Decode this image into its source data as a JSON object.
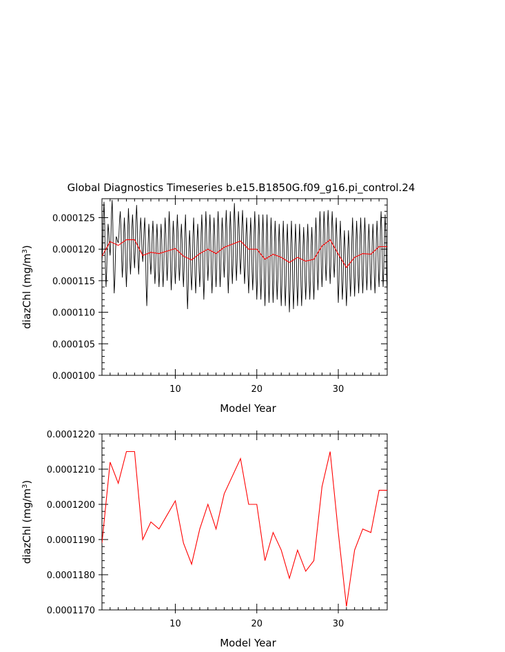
{
  "title": "Global Diagnostics Timeseries b.e15.B1850G.f09_g16.pi_control.24",
  "colors": {
    "monthly": "#000000",
    "annual": "#ff0000",
    "axis": "#000000",
    "background": "#ffffff"
  },
  "chart_data": [
    {
      "type": "line",
      "xlabel": "Model Year",
      "ylabel": "diazChl (mg/m³)",
      "ylabel_base": "diazChl (mg/m",
      "ylabel_sup": "3",
      "ylabel_close": ")",
      "xlim": [
        1,
        36
      ],
      "ylim": [
        0.0001,
        0.000128
      ],
      "xticks": [
        10,
        20,
        30
      ],
      "xtick_labels": [
        "10",
        "20",
        "30"
      ],
      "yticks": [
        0.0001,
        0.000105,
        0.00011,
        0.000115,
        0.00012,
        0.000125
      ],
      "ytick_labels": [
        "0.000100",
        "0.000105",
        "0.000110",
        "0.000115",
        "0.000120",
        "0.000125"
      ],
      "series": [
        {
          "type": "monthly",
          "amplitude": 5.5e-06,
          "wave_period_years": 0.5,
          "points": [
            [
              1.0,
              0.000118
            ],
            [
              1.25,
              0.0001275
            ],
            [
              1.5,
              0.000114
            ],
            [
              1.75,
              0.000124
            ],
            [
              2.0,
              0.000119
            ],
            [
              2.25,
              0.0001278
            ],
            [
              2.5,
              0.000113
            ],
            [
              2.75,
              0.000122
            ],
            [
              3.0,
              0.000121
            ],
            [
              3.25,
              0.000126
            ],
            [
              3.5,
              0.0001155
            ],
            [
              3.75,
              0.000125
            ],
            [
              4.0,
              0.000114
            ],
            [
              4.25,
              0.0001265
            ],
            [
              4.5,
              0.000116
            ],
            [
              4.75,
              0.0001255
            ],
            [
              5.0,
              0.000117
            ],
            [
              5.25,
              0.000127
            ],
            [
              5.5,
              0.000116
            ],
            [
              5.75,
              0.000125
            ],
            [
              6.0,
              0.000118
            ],
            [
              6.25,
              0.000125
            ],
            [
              6.5,
              0.000111
            ],
            [
              6.75,
              0.000124
            ],
            [
              7.0,
              0.000116
            ],
            [
              7.25,
              0.0001245
            ],
            [
              7.5,
              0.0001145
            ],
            [
              7.75,
              0.000124
            ],
            [
              8.0,
              0.000114
            ],
            [
              8.25,
              0.000124
            ],
            [
              8.5,
              0.000114
            ],
            [
              8.75,
              0.000125
            ],
            [
              9.0,
              0.000115
            ],
            [
              9.25,
              0.000126
            ],
            [
              9.5,
              0.0001135
            ],
            [
              9.75,
              0.0001245
            ],
            [
              10.0,
              0.0001145
            ],
            [
              10.25,
              0.0001255
            ],
            [
              10.5,
              0.000115
            ],
            [
              10.75,
              0.000124
            ],
            [
              11.0,
              0.000114
            ],
            [
              11.25,
              0.0001255
            ],
            [
              11.5,
              0.0001105
            ],
            [
              11.75,
              0.000123
            ],
            [
              12.0,
              0.0001135
            ],
            [
              12.25,
              0.000125
            ],
            [
              12.5,
              0.000113
            ],
            [
              12.75,
              0.000124
            ],
            [
              13.0,
              0.000114
            ],
            [
              13.25,
              0.0001255
            ],
            [
              13.5,
              0.000112
            ],
            [
              13.75,
              0.000126
            ],
            [
              14.0,
              0.000115
            ],
            [
              14.25,
              0.0001255
            ],
            [
              14.5,
              0.000113
            ],
            [
              14.75,
              0.000125
            ],
            [
              15.0,
              0.000114
            ],
            [
              15.25,
              0.000126
            ],
            [
              15.5,
              0.000114
            ],
            [
              15.75,
              0.000125
            ],
            [
              16.0,
              0.0001155
            ],
            [
              16.25,
              0.0001262
            ],
            [
              16.5,
              0.000113
            ],
            [
              16.75,
              0.000126
            ],
            [
              17.0,
              0.0001145
            ],
            [
              17.25,
              0.0001273
            ],
            [
              17.5,
              0.000115
            ],
            [
              17.75,
              0.000126
            ],
            [
              18.0,
              0.000116
            ],
            [
              18.25,
              0.0001262
            ],
            [
              18.5,
              0.0001145
            ],
            [
              18.75,
              0.000125
            ],
            [
              19.0,
              0.000113
            ],
            [
              19.25,
              0.000125
            ],
            [
              19.5,
              0.0001135
            ],
            [
              19.75,
              0.000126
            ],
            [
              20.0,
              0.000112
            ],
            [
              20.25,
              0.0001255
            ],
            [
              20.5,
              0.000112
            ],
            [
              20.75,
              0.0001255
            ],
            [
              21.0,
              0.000111
            ],
            [
              21.25,
              0.0001255
            ],
            [
              21.5,
              0.0001115
            ],
            [
              21.75,
              0.000125
            ],
            [
              22.0,
              0.0001115
            ],
            [
              22.25,
              0.0001245
            ],
            [
              22.5,
              0.000112
            ],
            [
              22.75,
              0.000124
            ],
            [
              23.0,
              0.000111
            ],
            [
              23.25,
              0.0001245
            ],
            [
              23.5,
              0.000111
            ],
            [
              23.75,
              0.000124
            ],
            [
              24.0,
              0.00011
            ],
            [
              24.25,
              0.0001245
            ],
            [
              24.5,
              0.0001105
            ],
            [
              24.75,
              0.000124
            ],
            [
              25.0,
              0.000111
            ],
            [
              25.25,
              0.000124
            ],
            [
              25.5,
              0.000111
            ],
            [
              25.75,
              0.0001235
            ],
            [
              26.0,
              0.000112
            ],
            [
              26.25,
              0.000124
            ],
            [
              26.5,
              0.000112
            ],
            [
              26.75,
              0.0001235
            ],
            [
              27.0,
              0.000112
            ],
            [
              27.25,
              0.000125
            ],
            [
              27.5,
              0.0001135
            ],
            [
              27.75,
              0.000126
            ],
            [
              28.0,
              0.000114
            ],
            [
              28.25,
              0.000126
            ],
            [
              28.5,
              0.000115
            ],
            [
              28.75,
              0.0001262
            ],
            [
              29.0,
              0.0001145
            ],
            [
              29.25,
              0.000126
            ],
            [
              29.5,
              0.0001155
            ],
            [
              29.75,
              0.000125
            ],
            [
              30.0,
              0.0001115
            ],
            [
              30.25,
              0.0001245
            ],
            [
              30.5,
              0.000112
            ],
            [
              30.75,
              0.000123
            ],
            [
              31.0,
              0.000111
            ],
            [
              31.25,
              0.000123
            ],
            [
              31.5,
              0.0001125
            ],
            [
              31.75,
              0.000125
            ],
            [
              32.0,
              0.0001125
            ],
            [
              32.25,
              0.0001245
            ],
            [
              32.5,
              0.000113
            ],
            [
              32.75,
              0.000125
            ],
            [
              33.0,
              0.000113
            ],
            [
              33.25,
              0.000125
            ],
            [
              33.5,
              0.0001135
            ],
            [
              33.75,
              0.000124
            ],
            [
              34.0,
              0.0001135
            ],
            [
              34.25,
              0.000124
            ],
            [
              34.5,
              0.000113
            ],
            [
              34.75,
              0.0001245
            ],
            [
              35.0,
              0.000114
            ],
            [
              35.25,
              0.000126
            ],
            [
              35.5,
              0.000114
            ],
            [
              35.75,
              0.0001255
            ],
            [
              36.0,
              0.000113
            ]
          ]
        },
        {
          "type": "annual",
          "x": [
            1,
            2,
            3,
            4,
            5,
            6,
            7,
            8,
            9,
            10,
            11,
            12,
            13,
            14,
            15,
            16,
            17,
            18,
            19,
            20,
            21,
            22,
            23,
            24,
            25,
            26,
            27,
            28,
            29,
            30,
            31,
            32,
            33,
            34,
            35,
            36
          ],
          "values": [
            0.0001189,
            0.0001212,
            0.0001206,
            0.0001215,
            0.0001215,
            0.000119,
            0.0001195,
            0.0001193,
            0.0001197,
            0.0001201,
            0.0001189,
            0.0001183,
            0.0001193,
            0.00012,
            0.0001193,
            0.0001203,
            0.0001208,
            0.0001213,
            0.00012,
            0.00012,
            0.0001184,
            0.0001192,
            0.0001187,
            0.0001179,
            0.0001187,
            0.0001181,
            0.0001184,
            0.0001205,
            0.0001215,
            0.0001192,
            0.0001171,
            0.0001187,
            0.0001193,
            0.0001192,
            0.0001204,
            0.0001204
          ]
        }
      ]
    },
    {
      "type": "line",
      "xlabel": "Model Year",
      "ylabel": "diazChl (mg/m³)",
      "ylabel_base": "diazChl (mg/m",
      "ylabel_sup": "3",
      "ylabel_close": ")",
      "xlim": [
        1,
        36
      ],
      "ylim": [
        0.000117,
        0.000122
      ],
      "xticks": [
        10,
        20,
        30
      ],
      "xtick_labels": [
        "10",
        "20",
        "30"
      ],
      "yticks": [
        0.000117,
        0.000118,
        0.000119,
        0.00012,
        0.000121,
        0.000122
      ],
      "ytick_labels": [
        "0.0001170",
        "0.0001180",
        "0.0001190",
        "0.0001200",
        "0.0001210",
        "0.0001220"
      ],
      "series": [
        {
          "type": "annual",
          "x": [
            1,
            2,
            3,
            4,
            5,
            6,
            7,
            8,
            9,
            10,
            11,
            12,
            13,
            14,
            15,
            16,
            17,
            18,
            19,
            20,
            21,
            22,
            23,
            24,
            25,
            26,
            27,
            28,
            29,
            30,
            31,
            32,
            33,
            34,
            35,
            36
          ],
          "values": [
            0.0001189,
            0.0001212,
            0.0001206,
            0.0001215,
            0.0001215,
            0.000119,
            0.0001195,
            0.0001193,
            0.0001197,
            0.0001201,
            0.0001189,
            0.0001183,
            0.0001193,
            0.00012,
            0.0001193,
            0.0001203,
            0.0001208,
            0.0001213,
            0.00012,
            0.00012,
            0.0001184,
            0.0001192,
            0.0001187,
            0.0001179,
            0.0001187,
            0.0001181,
            0.0001184,
            0.0001205,
            0.0001215,
            0.0001192,
            0.0001171,
            0.0001187,
            0.0001193,
            0.0001192,
            0.0001204,
            0.0001204
          ]
        }
      ]
    }
  ]
}
